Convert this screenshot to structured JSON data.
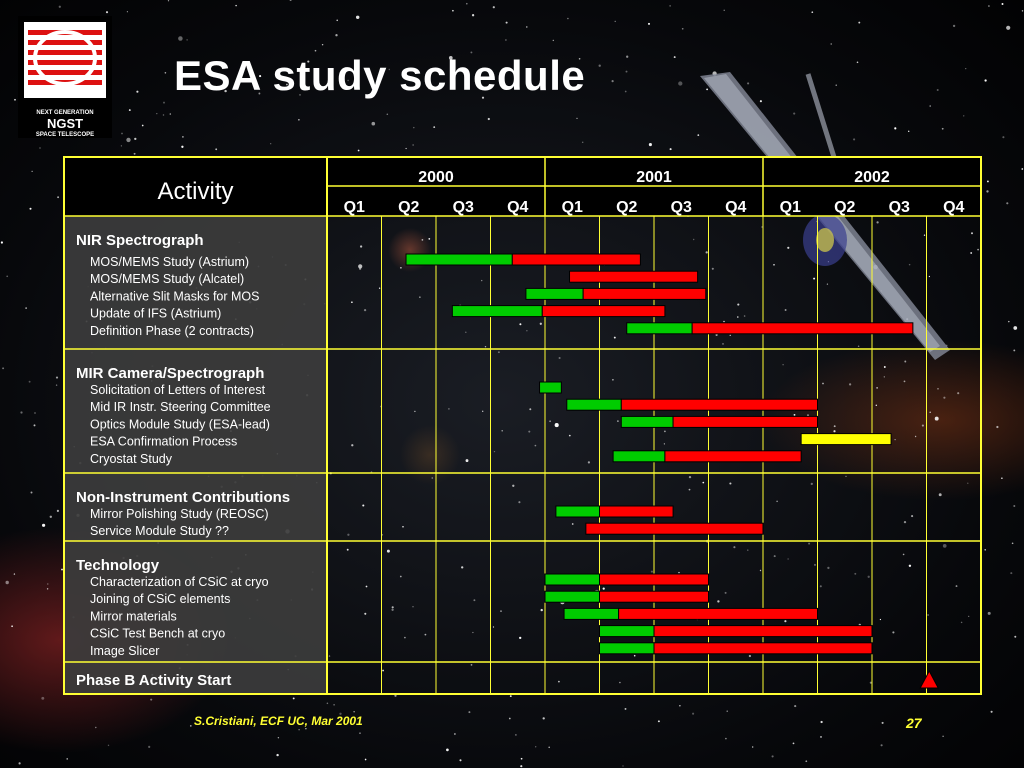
{
  "logo": {
    "line1": "NEXT GENERATION",
    "line2": "NGST",
    "line3": "SPACE TELESCOPE"
  },
  "title": "ESA study schedule",
  "footer": {
    "author": "S.Cristiani,  ECF UC, Mar 2001",
    "page": "27"
  },
  "colors": {
    "grid": "#ffff33",
    "header_bg": "#000000",
    "table_bg": "#3c3c3c",
    "phase_a": "#00cc00",
    "phase_b": "#ff0000",
    "confirmation": "#ffff00",
    "milestone": "#ff0000"
  },
  "chart_data": {
    "type": "gantt",
    "activity_header": "Activity",
    "years": [
      "2000",
      "2001",
      "2002"
    ],
    "quarters": [
      "Q1",
      "Q2",
      "Q3",
      "Q4",
      "Q1",
      "Q2",
      "Q3",
      "Q4",
      "Q1",
      "Q2",
      "Q3",
      "Q4"
    ],
    "time_unit": "quarters from start of 2000 Q1",
    "groups": [
      {
        "name": "NIR Spectrograph",
        "tasks": [
          {
            "label": "MOS/MEMS Study (Astrium)",
            "bars": [
              {
                "start": 1.45,
                "end": 3.4,
                "color": "green"
              },
              {
                "start": 3.4,
                "end": 5.75,
                "color": "red"
              }
            ]
          },
          {
            "label": "MOS/MEMS Study (Alcatel)",
            "bars": [
              {
                "start": 4.45,
                "end": 6.8,
                "color": "red"
              }
            ]
          },
          {
            "label": "Alternative Slit Masks for MOS",
            "bars": [
              {
                "start": 3.65,
                "end": 4.7,
                "color": "green"
              },
              {
                "start": 4.7,
                "end": 6.95,
                "color": "red"
              }
            ]
          },
          {
            "label": "Update of IFS (Astrium)",
            "bars": [
              {
                "start": 2.3,
                "end": 3.95,
                "color": "green"
              },
              {
                "start": 3.95,
                "end": 6.2,
                "color": "red"
              }
            ]
          },
          {
            "label": "Definition Phase (2 contracts)",
            "bars": [
              {
                "start": 5.5,
                "end": 6.7,
                "color": "green"
              },
              {
                "start": 6.7,
                "end": 10.75,
                "color": "red"
              }
            ]
          }
        ]
      },
      {
        "name": "MIR Camera/Spectrograph",
        "tasks": [
          {
            "label": "Solicitation of Letters of Interest",
            "bars": [
              {
                "start": 3.9,
                "end": 4.3,
                "color": "green"
              }
            ]
          },
          {
            "label": "Mid IR Instr. Steering Committee",
            "bars": [
              {
                "start": 4.4,
                "end": 5.4,
                "color": "green"
              },
              {
                "start": 5.4,
                "end": 9.0,
                "color": "red"
              }
            ]
          },
          {
            "label": "Optics Module Study  (ESA-lead)",
            "bars": [
              {
                "start": 5.4,
                "end": 6.35,
                "color": "green"
              },
              {
                "start": 6.35,
                "end": 9.0,
                "color": "red"
              }
            ]
          },
          {
            "label": "ESA Confirmation Process",
            "bars": [
              {
                "start": 8.7,
                "end": 10.35,
                "color": "yellow"
              }
            ]
          },
          {
            "label": "Cryostat Study",
            "bars": [
              {
                "start": 5.25,
                "end": 6.2,
                "color": "green"
              },
              {
                "start": 6.2,
                "end": 8.7,
                "color": "red"
              }
            ]
          }
        ]
      },
      {
        "name": "Non-Instrument Contributions",
        "tasks": [
          {
            "label": "Mirror Polishing Study (REOSC)",
            "bars": [
              {
                "start": 4.2,
                "end": 5.0,
                "color": "green"
              },
              {
                "start": 5.0,
                "end": 6.35,
                "color": "red"
              }
            ]
          },
          {
            "label": "Service Module Study ??",
            "bars": [
              {
                "start": 4.75,
                "end": 8.0,
                "color": "red"
              }
            ]
          }
        ]
      },
      {
        "name": "Technology",
        "tasks": [
          {
            "label": "Characterization of CSiC at cryo",
            "bars": [
              {
                "start": 4.0,
                "end": 5.0,
                "color": "green"
              },
              {
                "start": 5.0,
                "end": 7.0,
                "color": "red"
              }
            ]
          },
          {
            "label": "Joining of CSiC elements",
            "bars": [
              {
                "start": 4.0,
                "end": 5.0,
                "color": "green"
              },
              {
                "start": 5.0,
                "end": 7.0,
                "color": "red"
              }
            ]
          },
          {
            "label": "Mirror materials",
            "bars": [
              {
                "start": 4.35,
                "end": 5.35,
                "color": "green"
              },
              {
                "start": 5.35,
                "end": 9.0,
                "color": "red"
              }
            ]
          },
          {
            "label": "CSiC Test Bench at cryo",
            "bars": [
              {
                "start": 5.0,
                "end": 6.0,
                "color": "green"
              },
              {
                "start": 6.0,
                "end": 10.0,
                "color": "red"
              }
            ]
          },
          {
            "label": "Image Slicer",
            "bars": [
              {
                "start": 5.0,
                "end": 6.0,
                "color": "green"
              },
              {
                "start": 6.0,
                "end": 10.0,
                "color": "red"
              }
            ]
          }
        ]
      },
      {
        "name": "Phase B Activity Start",
        "tasks": [],
        "milestone": 11.05
      }
    ]
  }
}
